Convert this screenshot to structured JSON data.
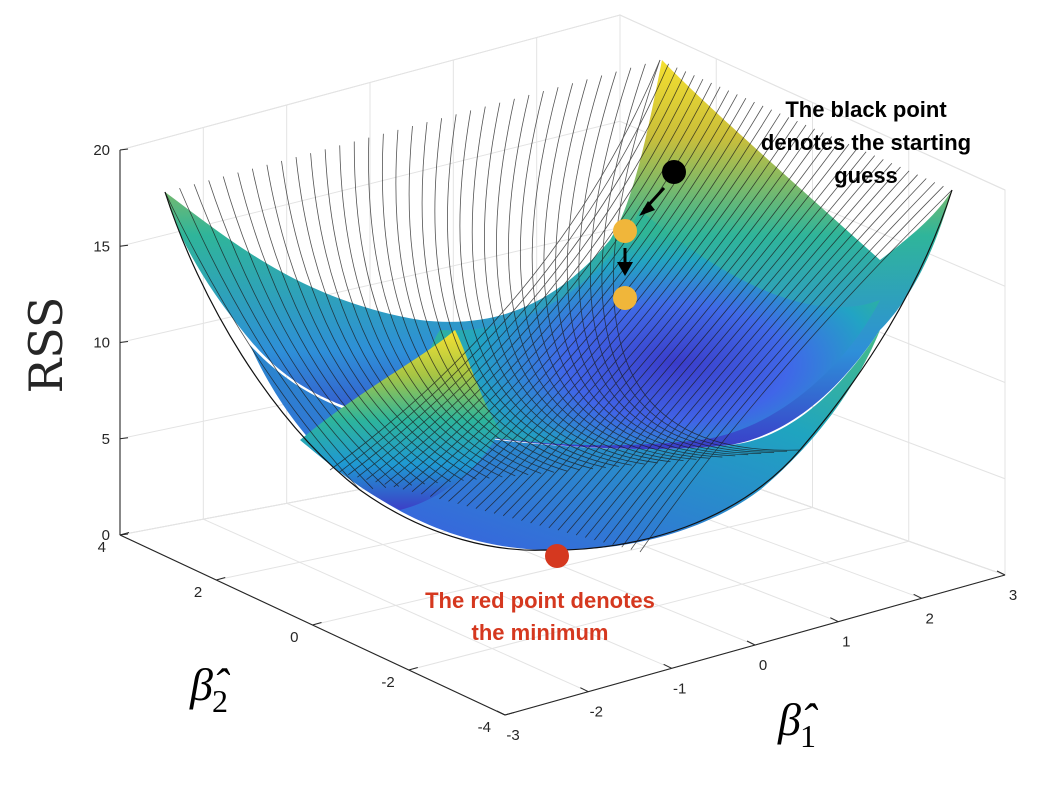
{
  "chart_data": {
    "type": "surface",
    "zlabel": "RSS",
    "xlabel": "β̂",
    "xlabel_sub": "1",
    "ylabel": "β̂",
    "ylabel_sub": "2",
    "xlim": [
      -3,
      3
    ],
    "ylim": [
      -4,
      4
    ],
    "zlim": [
      0,
      20
    ],
    "x_ticks": [
      "-3",
      "-2",
      "-1",
      "0",
      "1",
      "2",
      "3"
    ],
    "y_ticks": [
      "-4",
      "-2",
      "0",
      "2",
      "4"
    ],
    "z_ticks": [
      "0",
      "5",
      "10",
      "15",
      "20"
    ],
    "grid": true,
    "colormap": "parula",
    "surface": "RSS = β1² + β2²",
    "points": [
      {
        "name": "starting guess",
        "color": "#000000"
      },
      {
        "name": "step 1",
        "color": "#f0b63a"
      },
      {
        "name": "step 2",
        "color": "#f0b63a"
      },
      {
        "name": "minimum",
        "color": "#d5381f"
      }
    ],
    "annotations": [
      {
        "text_lines": [
          "The black point",
          "denotes the starting",
          "guess"
        ],
        "color": "#000000"
      },
      {
        "text_lines": [
          "The red point denotes",
          "the minimum"
        ],
        "color": "#d5381f"
      }
    ]
  }
}
